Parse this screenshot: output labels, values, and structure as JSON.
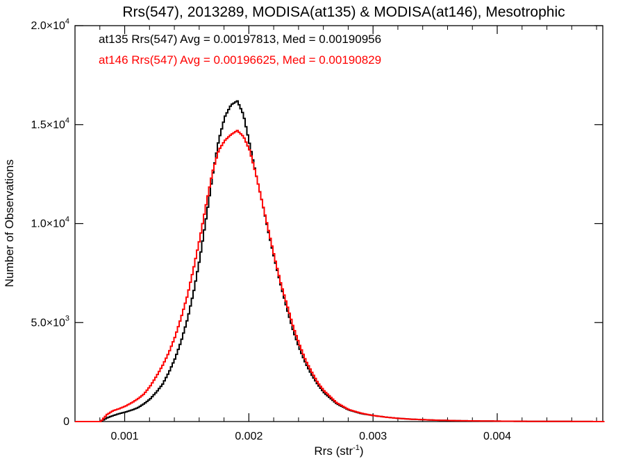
{
  "chart_data": {
    "type": "line",
    "title": "Rrs(547), 2013289, MODISA(at135) & MODISA(at146), Mesotrophic",
    "xlabel_main": "Rrs (str",
    "xlabel_sup": "-1",
    "xlabel_close": ")",
    "ylabel": "Number of Observations",
    "xlim": [
      0.0006,
      0.00485
    ],
    "ylim": [
      0,
      20000
    ],
    "grid": false,
    "x_ticks": [
      {
        "value": 0.001,
        "label": "0.001"
      },
      {
        "value": 0.002,
        "label": "0.002"
      },
      {
        "value": 0.003,
        "label": "0.003"
      },
      {
        "value": 0.004,
        "label": "0.004"
      }
    ],
    "y_ticks": [
      {
        "value": 0,
        "mant": "0",
        "exp": ""
      },
      {
        "value": 5000,
        "mant": "5.0×10",
        "exp": "3"
      },
      {
        "value": 10000,
        "mant": "1.0×10",
        "exp": "4"
      },
      {
        "value": 15000,
        "mant": "1.5×10",
        "exp": "4"
      },
      {
        "value": 20000,
        "mant": "2.0×10",
        "exp": "4"
      }
    ],
    "annotations": [
      {
        "text": "at135 Rrs(547) Avg = 0.00197813, Med = 0.00190956",
        "color": "#000000"
      },
      {
        "text": "at146 Rrs(547) Avg = 0.00196625, Med = 0.00190829",
        "color": "#ff0000"
      }
    ],
    "series": [
      {
        "name": "at135",
        "color": "#000000",
        "x": [
          0.0006,
          0.0007,
          0.0008,
          0.00085,
          0.0009,
          0.00095,
          0.001,
          0.00105,
          0.0011,
          0.00115,
          0.0012,
          0.00125,
          0.0013,
          0.00135,
          0.0014,
          0.00145,
          0.0015,
          0.00155,
          0.0016,
          0.00165,
          0.0017,
          0.00175,
          0.0018,
          0.00185,
          0.0019,
          0.00195,
          0.002,
          0.00205,
          0.0021,
          0.00215,
          0.0022,
          0.00225,
          0.0023,
          0.00235,
          0.0024,
          0.00245,
          0.0025,
          0.00255,
          0.0026,
          0.0027,
          0.0028,
          0.0029,
          0.003,
          0.0031,
          0.0032,
          0.0033,
          0.0035,
          0.0037,
          0.004,
          0.0043,
          0.0046,
          0.00485
        ],
        "y": [
          0,
          0,
          0,
          180,
          300,
          400,
          480,
          580,
          700,
          900,
          1150,
          1500,
          1900,
          2500,
          3200,
          4100,
          5200,
          6600,
          8300,
          10300,
          12400,
          14200,
          15400,
          16000,
          16200,
          15500,
          14000,
          12500,
          11100,
          9600,
          8200,
          6900,
          5700,
          4600,
          3700,
          2950,
          2350,
          1850,
          1450,
          900,
          580,
          400,
          300,
          220,
          160,
          120,
          70,
          40,
          20,
          10,
          5,
          0
        ]
      },
      {
        "name": "at146",
        "color": "#ff0000",
        "x": [
          0.0006,
          0.0007,
          0.0008,
          0.00085,
          0.0009,
          0.00095,
          0.001,
          0.00105,
          0.0011,
          0.00115,
          0.0012,
          0.00125,
          0.0013,
          0.00135,
          0.0014,
          0.00145,
          0.0015,
          0.00155,
          0.0016,
          0.00165,
          0.0017,
          0.00175,
          0.0018,
          0.00185,
          0.0019,
          0.00195,
          0.002,
          0.00205,
          0.0021,
          0.00215,
          0.0022,
          0.00225,
          0.0023,
          0.00235,
          0.0024,
          0.00245,
          0.0025,
          0.00255,
          0.0026,
          0.0027,
          0.0028,
          0.0029,
          0.003,
          0.0031,
          0.0032,
          0.0033,
          0.0035,
          0.0037,
          0.004,
          0.0043,
          0.0046,
          0.00485
        ],
        "y": [
          0,
          0,
          0,
          350,
          550,
          650,
          780,
          950,
          1150,
          1400,
          1800,
          2300,
          2850,
          3500,
          4300,
          5300,
          6400,
          7800,
          9300,
          11000,
          12600,
          13700,
          14200,
          14500,
          14700,
          14400,
          13700,
          12500,
          11100,
          9700,
          8300,
          7000,
          5900,
          4800,
          3900,
          3100,
          2500,
          1950,
          1550,
          950,
          600,
          420,
          300,
          220,
          160,
          120,
          70,
          40,
          20,
          10,
          5,
          0
        ]
      }
    ]
  }
}
